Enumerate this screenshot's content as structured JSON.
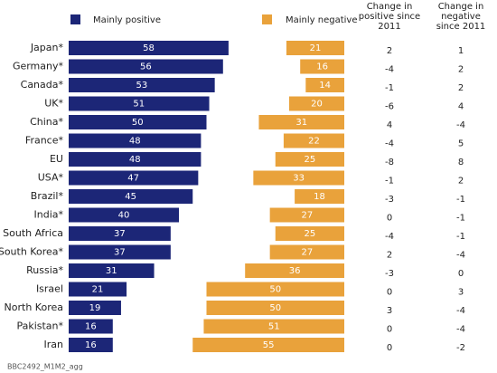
{
  "chart_data": {
    "type": "bar",
    "categories": [
      "Japan*",
      "Germany*",
      "Canada*",
      "UK*",
      "China*",
      "France*",
      "EU",
      "USA*",
      "Brazil*",
      "India*",
      "South Africa",
      "South Korea*",
      "Russia*",
      "Israel",
      "North Korea",
      "Pakistan*",
      "Iran"
    ],
    "series": [
      {
        "name": "Mainly positive",
        "color": "#1c2677",
        "values": [
          58,
          56,
          53,
          51,
          50,
          48,
          48,
          47,
          45,
          40,
          37,
          37,
          31,
          21,
          19,
          16,
          16
        ]
      },
      {
        "name": "Mainly negative",
        "color": "#e9a23b",
        "values": [
          21,
          16,
          14,
          20,
          31,
          22,
          25,
          33,
          18,
          27,
          25,
          27,
          36,
          50,
          50,
          51,
          55
        ]
      }
    ],
    "change_columns": [
      {
        "header": "Change in positive since 2011",
        "values": [
          2,
          -4,
          -1,
          -6,
          4,
          -4,
          -8,
          -1,
          -3,
          0,
          -4,
          2,
          -3,
          0,
          3,
          0,
          0
        ]
      },
      {
        "header": "Change in negative since 2011",
        "values": [
          1,
          2,
          2,
          4,
          -4,
          5,
          8,
          2,
          -1,
          -1,
          -1,
          -4,
          0,
          3,
          -4,
          -4,
          -2
        ]
      }
    ],
    "footnote": "BBC2492_M1M2_agg"
  }
}
